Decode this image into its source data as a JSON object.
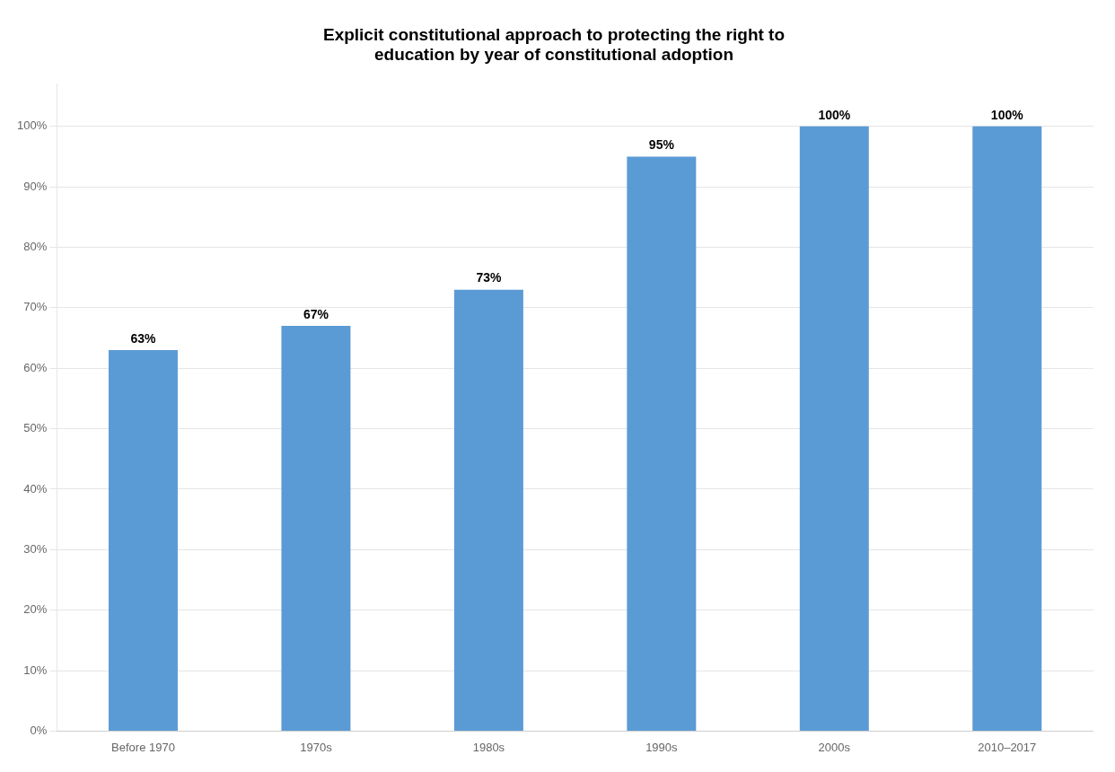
{
  "chart_data": {
    "type": "bar",
    "title": "Explicit constitutional approach to protecting the right to\neducation by year of constitutional adoption",
    "categories": [
      "Before 1970",
      "1970s",
      "1980s",
      "1990s",
      "2000s",
      "2010–2017"
    ],
    "values": [
      63,
      67,
      73,
      95,
      100,
      100
    ],
    "value_labels": [
      "63%",
      "67%",
      "73%",
      "95%",
      "100%",
      "100%"
    ],
    "data_labels": true,
    "color": "#5B9BD5",
    "ylim": [
      0,
      107
    ],
    "yticks": [
      {
        "value": 0,
        "label": "0%"
      },
      {
        "value": 10,
        "label": "10%"
      },
      {
        "value": 20,
        "label": "20%"
      },
      {
        "value": 30,
        "label": "30%"
      },
      {
        "value": 40,
        "label": "40%"
      },
      {
        "value": 50,
        "label": "50%"
      },
      {
        "value": 60,
        "label": "60%"
      },
      {
        "value": 70,
        "label": "70%"
      },
      {
        "value": 80,
        "label": "80%"
      },
      {
        "value": 90,
        "label": "90%"
      },
      {
        "value": 100,
        "label": "100%"
      }
    ],
    "grid": true
  }
}
